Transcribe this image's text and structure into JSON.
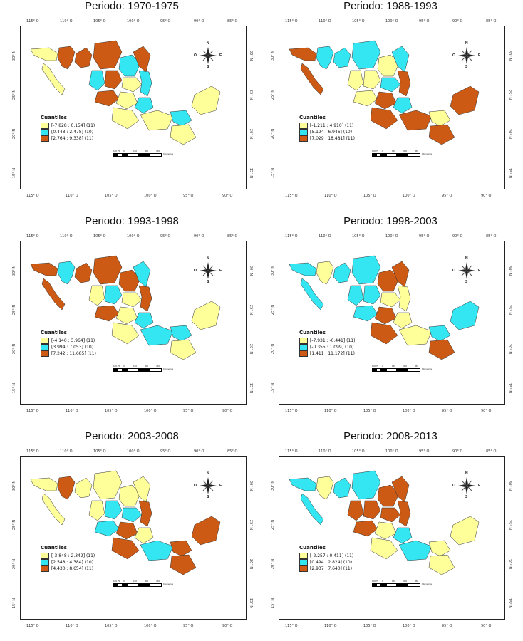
{
  "colors": {
    "low": "#ffff99",
    "mid": "#33e6f2",
    "high": "#cc5a14",
    "border": "#333333"
  },
  "axis": {
    "top_labels": [
      "115° O",
      "110° O",
      "105° O",
      "100° O",
      "95° O",
      "90° O",
      "85° O"
    ],
    "bottom_labels": [
      "115° O",
      "110° O",
      "105° O",
      "100° O",
      "95° O",
      "90° O"
    ],
    "left_labels": [
      "30° N",
      "25° N",
      "20° N",
      "15° N"
    ],
    "right_labels": [
      "30° N",
      "25° N",
      "20° N",
      "15° N"
    ]
  },
  "compass": {
    "n": "N",
    "s": "S",
    "e": "E",
    "o": "O"
  },
  "scale": {
    "labels": [
      "100 75",
      "0",
      "150",
      "300",
      "450"
    ],
    "unit": "Kilometros"
  },
  "legend_title": "Cuantiles",
  "panels": [
    {
      "title": "Periodo: 1970-1975",
      "legend": [
        "[-7.828 : 0.154] (11)",
        "[0.443 : 2.478] (10)",
        "[2.764 : 9.338] (11)"
      ],
      "regions": [
        "low",
        "high",
        "low",
        "high",
        "high",
        "mid",
        "high",
        "mid",
        "high",
        "low",
        "mid",
        "high",
        "low",
        "mid",
        "low",
        "low",
        "mid",
        "low",
        "low"
      ]
    },
    {
      "title": "Periodo: 1988-1993",
      "legend": [
        "[-1.211 : 4.910] (11)",
        "[5.194 : 6.946] (10)",
        "[7.029 : 18.481] (11)"
      ],
      "regions": [
        "high",
        "mid",
        "high",
        "mid",
        "mid",
        "low",
        "mid",
        "low",
        "low",
        "mid",
        "high",
        "low",
        "high",
        "mid",
        "high",
        "high",
        "low",
        "high",
        "high"
      ]
    },
    {
      "title": "Periodo: 1993-1998",
      "legend": [
        "[-4.140 : 3.964] (11)",
        "[3.994 : 7.053] (10)",
        "[7.242 : 11.685] (11)"
      ],
      "regions": [
        "high",
        "mid",
        "high",
        "high",
        "high",
        "high",
        "mid",
        "low",
        "mid",
        "low",
        "high",
        "high",
        "low",
        "mid",
        "low",
        "mid",
        "mid",
        "low",
        "low"
      ]
    },
    {
      "title": "Periodo: 1998-2003",
      "legend": [
        "[-7.931 : -0.441] (11)",
        "[-0.355 : 1.099] (10)",
        "[1.411 : 11.172] (11)"
      ],
      "regions": [
        "mid",
        "low",
        "mid",
        "mid",
        "mid",
        "high",
        "high",
        "mid",
        "mid",
        "low",
        "low",
        "mid",
        "high",
        "low",
        "high",
        "low",
        "mid",
        "high",
        "mid"
      ]
    },
    {
      "title": "Periodo: 2003-2008",
      "legend": [
        "[-3.848 : 2.342] (11)",
        "[2.548 : 4.384] (10)",
        "[4.430 : 8.654] (11)"
      ],
      "regions": [
        "low",
        "high",
        "low",
        "low",
        "low",
        "low",
        "low",
        "low",
        "mid",
        "mid",
        "high",
        "mid",
        "high",
        "low",
        "high",
        "mid",
        "high",
        "high",
        "high"
      ]
    },
    {
      "title": "Periodo: 2008-2013",
      "legend": [
        "[-2.257 : 0.411] (11)",
        "[0.494 : 2.824] (10)",
        "[2.937 : 7.640] (11)"
      ],
      "regions": [
        "mid",
        "low",
        "mid",
        "mid",
        "mid",
        "high",
        "high",
        "high",
        "high",
        "high",
        "high",
        "high",
        "low",
        "mid",
        "low",
        "mid",
        "low",
        "low",
        "low"
      ]
    }
  ]
}
